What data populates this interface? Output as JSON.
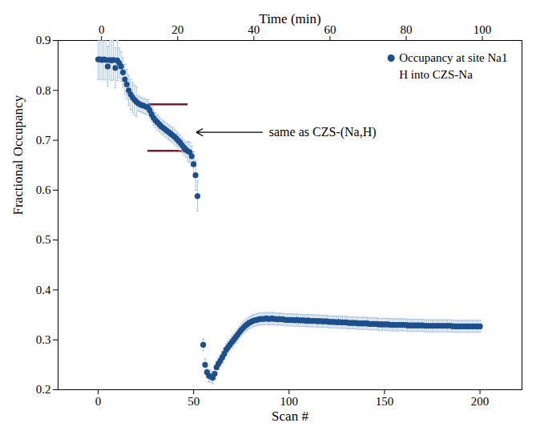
{
  "chart_data": {
    "type": "scatter",
    "xlabel": "Scan #",
    "x2label": "Time (min)",
    "ylabel": "Fractional Occupancy",
    "xlim": [
      -21,
      222
    ],
    "xticks": [
      0,
      50,
      100,
      150,
      200
    ],
    "x2lim": [
      -11.4,
      110.4
    ],
    "x2ticks": [
      0,
      20,
      40,
      60,
      80,
      100
    ],
    "ylim": [
      0.2,
      0.9
    ],
    "yticks": [
      0.2,
      0.3,
      0.4,
      0.5,
      0.6,
      0.7,
      0.8,
      0.9
    ],
    "grid": false,
    "legend": "top-right",
    "legend_subtitle": "H into CZS-Na",
    "x": [
      0,
      1,
      2,
      3,
      4,
      5,
      6,
      7,
      8,
      9,
      10,
      11,
      12,
      13,
      14,
      15,
      16,
      17,
      18,
      19,
      20,
      21,
      22,
      23,
      24,
      25,
      26,
      27,
      28,
      29,
      30,
      31,
      32,
      33,
      34,
      35,
      36,
      37,
      38,
      39,
      40,
      41,
      42,
      43,
      44,
      45,
      46,
      47,
      48,
      49,
      50,
      51,
      52,
      53,
      54,
      55,
      56,
      57,
      58,
      59,
      60,
      61,
      62,
      63,
      64,
      65,
      66,
      67,
      68,
      69,
      70,
      71,
      72,
      73,
      74,
      75,
      76,
      77,
      78,
      79,
      80,
      81,
      82,
      83,
      84,
      85,
      86,
      87,
      88,
      89,
      90,
      91,
      92,
      93,
      94,
      95,
      96,
      97,
      98,
      99,
      100,
      101,
      102,
      103,
      104,
      105,
      106,
      107,
      108,
      109,
      110,
      111,
      112,
      113,
      114,
      115,
      116,
      117,
      118,
      119,
      120,
      121,
      122,
      123,
      124,
      125,
      126,
      127,
      128,
      129,
      130,
      131,
      132,
      133,
      134,
      135,
      136,
      137,
      138,
      139,
      140,
      141,
      142,
      143,
      144,
      145,
      146,
      147,
      148,
      149,
      150,
      151,
      152,
      153,
      154,
      155,
      156,
      157,
      158,
      159,
      160,
      161,
      162,
      163,
      164,
      165,
      166,
      167,
      168,
      169,
      170,
      171,
      172,
      173,
      174,
      175,
      176,
      177,
      178,
      179,
      180,
      181,
      182,
      183,
      184,
      185,
      186,
      187,
      188,
      189,
      190,
      191,
      192,
      193,
      194,
      195,
      196,
      197,
      198,
      199,
      200
    ],
    "series": [
      {
        "name": "Occupancy at site Na1",
        "color": "#1c4f8c",
        "marker": "circle",
        "values": [
          0.862,
          0.862,
          0.861,
          0.862,
          0.861,
          0.848,
          0.861,
          0.86,
          0.861,
          0.845,
          0.86,
          0.855,
          0.848,
          0.836,
          0.822,
          0.812,
          0.8,
          0.792,
          0.786,
          0.781,
          0.777,
          0.774,
          0.772,
          0.77,
          0.769,
          0.767,
          0.766,
          0.76,
          0.752,
          0.745,
          0.74,
          0.736,
          0.732,
          0.728,
          0.725,
          0.722,
          0.719,
          0.716,
          0.713,
          0.71,
          0.707,
          0.703,
          0.699,
          0.695,
          0.69,
          0.685,
          0.681,
          0.678,
          0.676,
          0.668,
          0.652,
          0.63,
          0.588,
          null,
          null,
          0.29,
          0.25,
          0.235,
          0.228,
          0.226,
          0.224,
          0.232,
          0.245,
          0.252,
          0.258,
          0.265,
          0.272,
          0.28,
          0.285,
          0.29,
          0.295,
          0.3,
          0.305,
          0.31,
          0.315,
          0.32,
          0.324,
          0.328,
          0.331,
          0.334,
          0.336,
          0.338,
          0.339,
          0.34,
          0.341,
          0.342,
          0.342,
          0.342,
          0.343,
          0.342,
          0.342,
          0.343,
          0.342,
          0.342,
          0.341,
          0.342,
          0.341,
          0.341,
          0.34,
          0.34,
          0.34,
          0.34,
          0.34,
          0.339,
          0.34,
          0.339,
          0.339,
          0.339,
          0.339,
          0.338,
          0.339,
          0.338,
          0.338,
          0.338,
          0.338,
          0.337,
          0.338,
          0.337,
          0.337,
          0.337,
          0.337,
          0.336,
          0.336,
          0.336,
          0.336,
          0.335,
          0.336,
          0.335,
          0.335,
          0.335,
          0.335,
          0.334,
          0.334,
          0.334,
          0.334,
          0.334,
          0.333,
          0.333,
          0.333,
          0.333,
          0.333,
          0.333,
          0.332,
          0.332,
          0.332,
          0.332,
          0.332,
          0.331,
          0.331,
          0.331,
          0.331,
          0.331,
          0.331,
          0.33,
          0.33,
          0.33,
          0.33,
          0.33,
          0.33,
          0.33,
          0.33,
          0.33,
          0.329,
          0.329,
          0.329,
          0.329,
          0.329,
          0.329,
          0.329,
          0.329,
          0.329,
          0.328,
          0.328,
          0.328,
          0.328,
          0.328,
          0.328,
          0.328,
          0.328,
          0.328,
          0.328,
          0.328,
          0.328,
          0.328,
          0.328,
          0.328,
          0.327,
          0.327,
          0.327,
          0.327,
          0.327,
          0.327,
          0.327,
          0.327,
          0.327,
          0.327,
          0.327,
          0.327,
          0.327,
          0.327,
          0.327
        ],
        "errors": [
          0.04,
          0.04,
          0.04,
          0.04,
          0.04,
          0.04,
          0.04,
          0.04,
          0.04,
          0.04,
          0.04,
          0.03,
          0.03,
          0.03,
          0.03,
          0.03,
          0.03,
          0.03,
          0.03,
          0.03,
          0.03,
          0.015,
          0.015,
          0.015,
          0.015,
          0.015,
          0.015,
          0.015,
          0.015,
          0.015,
          0.015,
          0.015,
          0.015,
          0.015,
          0.015,
          0.015,
          0.015,
          0.015,
          0.015,
          0.015,
          0.015,
          0.015,
          0.015,
          0.015,
          0.015,
          0.015,
          0.015,
          0.02,
          0.02,
          0.02,
          0.025,
          0.03,
          0.03,
          null,
          null,
          0.012,
          0.012,
          0.012,
          0.012,
          0.012,
          0.012,
          0.012,
          0.012,
          0.012,
          0.012,
          0.012,
          0.012,
          0.012,
          0.012,
          0.012,
          0.012,
          0.012,
          0.012,
          0.012,
          0.012,
          0.012,
          0.012,
          0.012,
          0.012,
          0.012,
          0.012,
          0.012,
          0.012,
          0.012,
          0.012,
          0.012,
          0.012,
          0.012,
          0.012,
          0.012,
          0.012,
          0.012,
          0.012,
          0.012,
          0.012,
          0.012,
          0.012,
          0.012,
          0.012,
          0.012,
          0.012,
          0.012,
          0.012,
          0.012,
          0.012,
          0.012,
          0.012,
          0.012,
          0.012,
          0.012,
          0.012,
          0.012,
          0.012,
          0.012,
          0.012,
          0.012,
          0.012,
          0.012,
          0.012,
          0.012,
          0.012,
          0.012,
          0.012,
          0.012,
          0.012,
          0.012,
          0.012,
          0.012,
          0.012,
          0.012,
          0.012,
          0.012,
          0.012,
          0.012,
          0.012,
          0.012,
          0.012,
          0.012,
          0.012,
          0.012,
          0.012,
          0.012,
          0.012,
          0.012,
          0.012,
          0.012,
          0.012,
          0.012,
          0.012,
          0.012,
          0.012,
          0.012,
          0.012,
          0.012,
          0.012,
          0.012,
          0.012,
          0.012,
          0.012,
          0.012,
          0.012,
          0.012,
          0.012,
          0.012,
          0.012,
          0.012,
          0.012,
          0.012,
          0.012,
          0.012,
          0.012,
          0.012,
          0.012,
          0.012,
          0.012,
          0.012,
          0.012,
          0.012,
          0.012,
          0.012,
          0.012,
          0.012,
          0.012,
          0.012,
          0.012,
          0.012,
          0.012,
          0.012,
          0.012,
          0.012,
          0.012,
          0.012,
          0.012,
          0.012,
          0.012,
          0.012,
          0.012,
          0.012,
          0.012,
          0.012,
          0.012
        ]
      }
    ],
    "reference_lines": [
      {
        "y": 0.772,
        "x": [
          26,
          47
        ],
        "color": "#7d1a35"
      },
      {
        "y": 0.679,
        "x": [
          26,
          47
        ],
        "color": "#7d1a35"
      }
    ],
    "annotations": [
      {
        "text": "same as CZS-(Na,H)",
        "x": 89.5,
        "y": 0.716,
        "arrow_from": [
          86,
          0.716
        ],
        "arrow_to": [
          51.5,
          0.716
        ]
      }
    ]
  }
}
